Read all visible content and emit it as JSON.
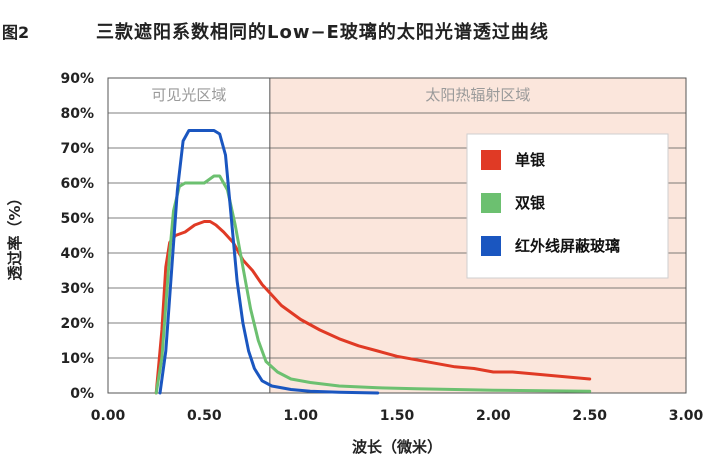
{
  "figure_label": "图2",
  "chart_data": {
    "type": "line",
    "title": "三款遮阳系数相同的Low−E玻璃的太阳光谱透过曲线",
    "xlabel": "波长（微米）",
    "ylabel": "透过率（%）",
    "xlim": [
      0,
      3.0
    ],
    "ylim": [
      0,
      90
    ],
    "x_ticks": [
      "0.00",
      "0.50",
      "1.00",
      "1.50",
      "2.00",
      "2.50",
      "3.00"
    ],
    "y_ticks": [
      "0%",
      "10%",
      "20%",
      "30%",
      "40%",
      "50%",
      "60%",
      "70%",
      "80%",
      "90%"
    ],
    "regions": [
      {
        "label": "可见光区域",
        "x_start": 0.0,
        "x_end": 0.84,
        "color": "#ffffff"
      },
      {
        "label": "太阳热辐射区域",
        "x_start": 0.84,
        "x_end": 3.0,
        "color": "#fbe6dc"
      }
    ],
    "legend_position": "upper-right",
    "series": [
      {
        "name": "单银",
        "color": "#e03a25",
        "points": [
          [
            0.25,
            0
          ],
          [
            0.28,
            18
          ],
          [
            0.3,
            36
          ],
          [
            0.32,
            43
          ],
          [
            0.35,
            45
          ],
          [
            0.4,
            46
          ],
          [
            0.45,
            48
          ],
          [
            0.5,
            49
          ],
          [
            0.53,
            49
          ],
          [
            0.56,
            48
          ],
          [
            0.6,
            46
          ],
          [
            0.65,
            43
          ],
          [
            0.7,
            38
          ],
          [
            0.75,
            35
          ],
          [
            0.8,
            31
          ],
          [
            0.85,
            28
          ],
          [
            0.9,
            25
          ],
          [
            1.0,
            21
          ],
          [
            1.1,
            18
          ],
          [
            1.2,
            15.5
          ],
          [
            1.3,
            13.5
          ],
          [
            1.4,
            12
          ],
          [
            1.5,
            10.5
          ],
          [
            1.6,
            9.5
          ],
          [
            1.7,
            8.5
          ],
          [
            1.8,
            7.5
          ],
          [
            1.9,
            7
          ],
          [
            2.0,
            6
          ],
          [
            2.1,
            6
          ],
          [
            2.2,
            5.5
          ],
          [
            2.3,
            5
          ],
          [
            2.4,
            4.5
          ],
          [
            2.5,
            4
          ]
        ]
      },
      {
        "name": "双银",
        "color": "#6cc070",
        "points": [
          [
            0.25,
            0
          ],
          [
            0.28,
            10
          ],
          [
            0.3,
            25
          ],
          [
            0.32,
            40
          ],
          [
            0.34,
            52
          ],
          [
            0.37,
            59
          ],
          [
            0.4,
            60
          ],
          [
            0.45,
            60
          ],
          [
            0.5,
            60
          ],
          [
            0.55,
            62
          ],
          [
            0.58,
            62
          ],
          [
            0.62,
            58
          ],
          [
            0.66,
            48
          ],
          [
            0.7,
            36
          ],
          [
            0.74,
            24
          ],
          [
            0.78,
            15
          ],
          [
            0.82,
            9
          ],
          [
            0.88,
            6
          ],
          [
            0.95,
            4
          ],
          [
            1.05,
            3
          ],
          [
            1.2,
            2
          ],
          [
            1.4,
            1.5
          ],
          [
            1.6,
            1.2
          ],
          [
            1.8,
            1
          ],
          [
            2.0,
            0.8
          ],
          [
            2.2,
            0.7
          ],
          [
            2.5,
            0.5
          ]
        ]
      },
      {
        "name": "红外线屏蔽玻璃",
        "color": "#1a56c0",
        "points": [
          [
            0.27,
            0
          ],
          [
            0.3,
            12
          ],
          [
            0.33,
            35
          ],
          [
            0.36,
            58
          ],
          [
            0.39,
            72
          ],
          [
            0.42,
            75
          ],
          [
            0.48,
            75
          ],
          [
            0.55,
            75
          ],
          [
            0.58,
            74
          ],
          [
            0.61,
            68
          ],
          [
            0.64,
            50
          ],
          [
            0.67,
            32
          ],
          [
            0.7,
            20
          ],
          [
            0.73,
            12
          ],
          [
            0.76,
            7
          ],
          [
            0.8,
            3.5
          ],
          [
            0.85,
            2
          ],
          [
            0.95,
            1
          ],
          [
            1.05,
            0.5
          ],
          [
            1.2,
            0.2
          ],
          [
            1.4,
            0
          ]
        ]
      }
    ]
  }
}
